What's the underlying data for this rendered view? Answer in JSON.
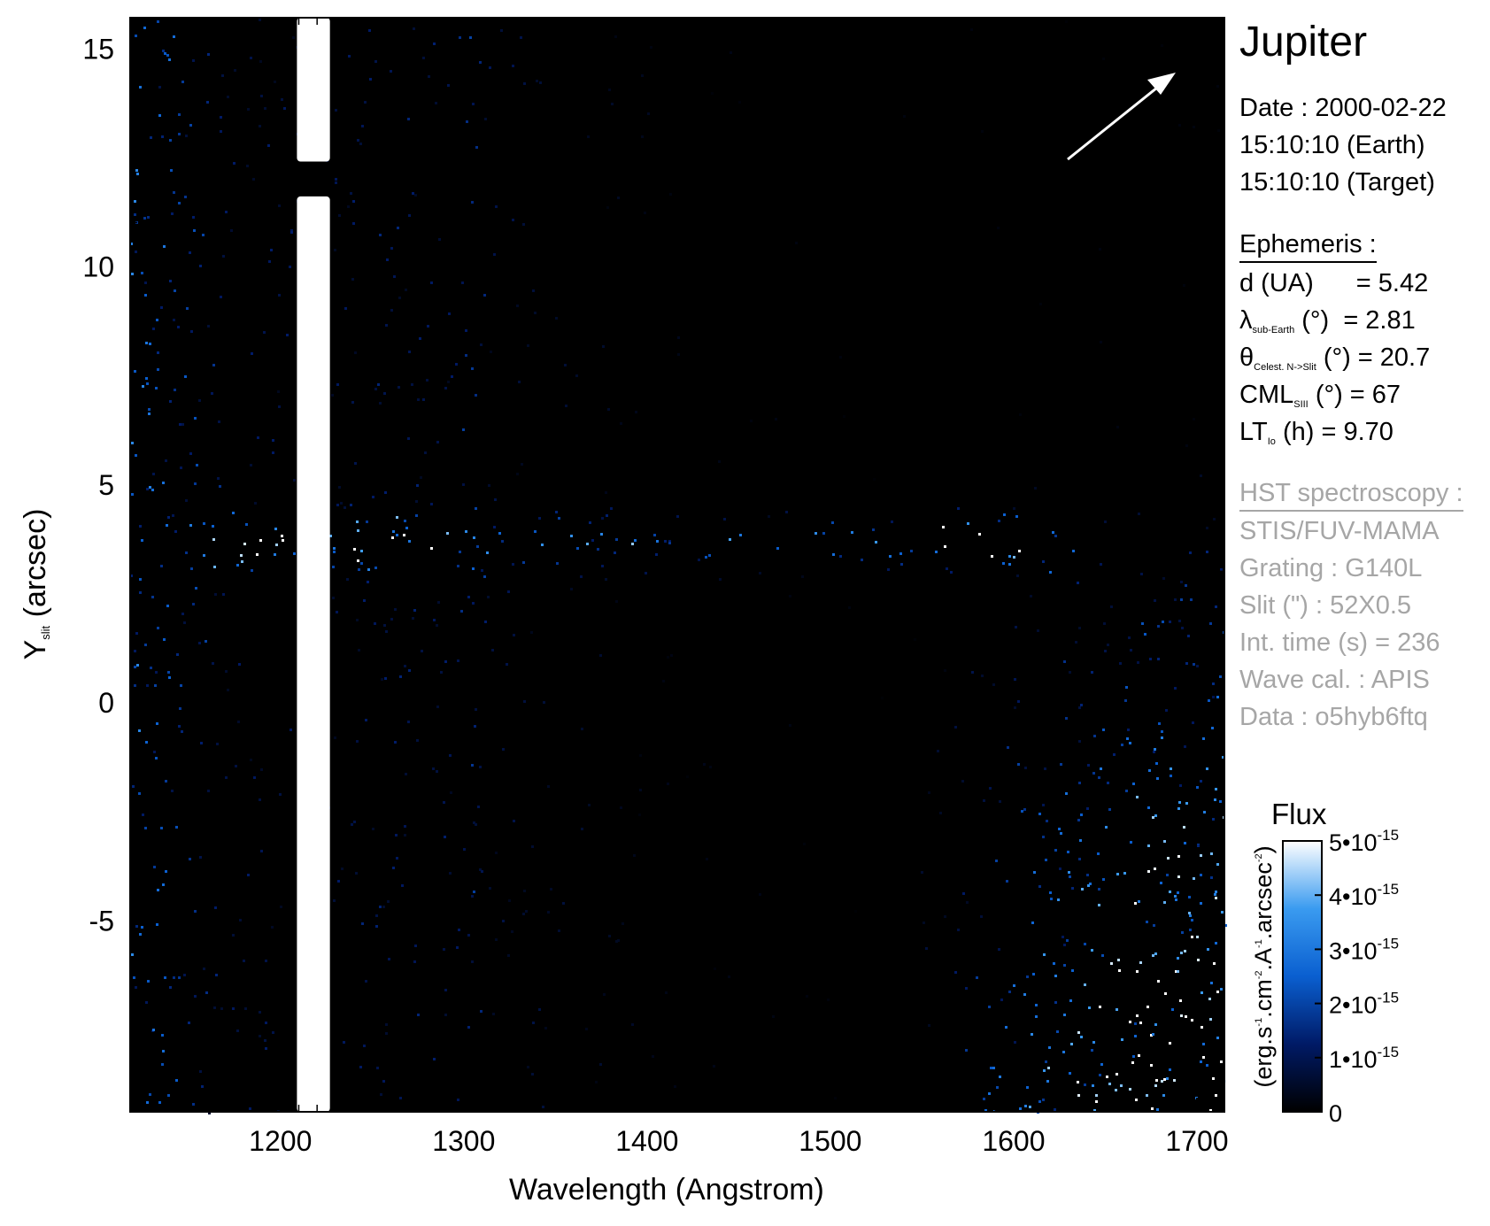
{
  "chart_data": {
    "type": "heatmap",
    "title": "Jupiter",
    "xlabel": "Wavelength (Angstrom)",
    "ylabel_main": "Y",
    "ylabel_sub": "slit",
    "ylabel_unit": " (arcsec)",
    "xlim": [
      1118,
      1715
    ],
    "ylim": [
      -9.4,
      15.7
    ],
    "x_ticks": [
      1200,
      1300,
      1400,
      1500,
      1600,
      1700
    ],
    "x_tick_labels": [
      "1200",
      "1300",
      "1400",
      "1500",
      "1600",
      "1700"
    ],
    "y_ticks": [
      -5,
      0,
      5,
      10,
      15
    ],
    "y_tick_labels": [
      "-5",
      "0",
      "5",
      "10",
      "15"
    ],
    "features": {
      "lyman_alpha_band": {
        "x_min": 1209,
        "x_max": 1227,
        "gap_y": [
          11.6,
          12.4
        ]
      },
      "oi_band": {
        "x": 1305,
        "width": 8
      },
      "planet_stripe": {
        "y": 3.7,
        "half_width": 0.55,
        "x_start": 1150,
        "x_end": 1635
      },
      "reflected_continuum_start": 1540
    },
    "colorbar": {
      "title": "Flux",
      "unit_label": "(erg.s-1.cm-2.A-1.arcsec-2)",
      "min": 0,
      "max": 5e-15,
      "ticks": [
        0,
        1e-15,
        2e-15,
        3e-15,
        4e-15,
        5e-15
      ],
      "tick_labels": [
        {
          "mant": "0",
          "exp": ""
        },
        {
          "mant": "1•10",
          "exp": "-15"
        },
        {
          "mant": "2•10",
          "exp": "-15"
        },
        {
          "mant": "3•10",
          "exp": "-15"
        },
        {
          "mant": "4•10",
          "exp": "-15"
        },
        {
          "mant": "5•10",
          "exp": "-15"
        }
      ],
      "colors": [
        "#000000",
        "#001a66",
        "#0a5fd0",
        "#3a9bf0",
        "#ffffff"
      ]
    }
  },
  "info": {
    "title": "Jupiter",
    "date_line": "Date : 2000-02-22",
    "time_earth": "15:10:10 (Earth)",
    "time_target": "15:10:10 (Target)",
    "ephemeris_heading": "Ephemeris :",
    "ephemeris": {
      "d_label": "d (UA)",
      "d_value": "= 5.42",
      "lambda_symbol": "λ",
      "lambda_sub": "sub-Earth",
      "lambda_unit": "(°)",
      "lambda_value": "= 2.81",
      "theta_symbol": "θ",
      "theta_sub": "Celest. N->Slit",
      "theta_unit": "(°)",
      "theta_value": "= 20.7",
      "cml_label": "CML",
      "cml_sub": "SIII",
      "cml_unit": "(°)",
      "cml_value": "= 67",
      "lt_label": "LT",
      "lt_sub": "Io",
      "lt_unit": "(h)",
      "lt_value": "= 9.70"
    },
    "hst_heading": "HST spectroscopy :",
    "instrument": "STIS/FUV-MAMA",
    "grating": "Grating : G140L",
    "slit": "Slit (\") : 52X0.5",
    "int_time": "Int. time (s) = 236",
    "wave_cal": "Wave cal. : APIS",
    "dataset": "Data : o5hyb6ftq"
  }
}
